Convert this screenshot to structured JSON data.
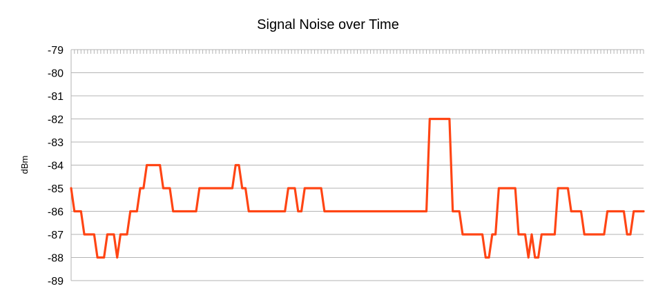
{
  "chart_data": {
    "type": "line",
    "title": "Signal Noise over Time",
    "xlabel": "",
    "ylabel": "dBm",
    "ylim": [
      -89,
      -79
    ],
    "yticks": [
      -79,
      -80,
      -81,
      -82,
      -83,
      -84,
      -85,
      -86,
      -87,
      -88,
      -89
    ],
    "grid": true,
    "legend": "none",
    "series": [
      {
        "values": [
          -85,
          -86,
          -86,
          -86,
          -87,
          -87,
          -87,
          -87,
          -88,
          -88,
          -88,
          -87,
          -87,
          -87,
          -88,
          -87,
          -87,
          -87,
          -86,
          -86,
          -86,
          -85,
          -85,
          -84,
          -84,
          -84,
          -84,
          -84,
          -85,
          -85,
          -85,
          -86,
          -86,
          -86,
          -86,
          -86,
          -86,
          -86,
          -86,
          -85,
          -85,
          -85,
          -85,
          -85,
          -85,
          -85,
          -85,
          -85,
          -85,
          -85,
          -84,
          -84,
          -85,
          -85,
          -86,
          -86,
          -86,
          -86,
          -86,
          -86,
          -86,
          -86,
          -86,
          -86,
          -86,
          -86,
          -85,
          -85,
          -85,
          -86,
          -86,
          -85,
          -85,
          -85,
          -85,
          -85,
          -85,
          -86,
          -86,
          -86,
          -86,
          -86,
          -86,
          -86,
          -86,
          -86,
          -86,
          -86,
          -86,
          -86,
          -86,
          -86,
          -86,
          -86,
          -86,
          -86,
          -86,
          -86,
          -86,
          -86,
          -86,
          -86,
          -86,
          -86,
          -86,
          -86,
          -86,
          -86,
          -86,
          -82,
          -82,
          -82,
          -82,
          -82,
          -82,
          -82,
          -86,
          -86,
          -86,
          -87,
          -87,
          -87,
          -87,
          -87,
          -87,
          -87,
          -88,
          -88,
          -87,
          -87,
          -85,
          -85,
          -85,
          -85,
          -85,
          -85,
          -87,
          -87,
          -87,
          -88,
          -87,
          -88,
          -88,
          -87,
          -87,
          -87,
          -87,
          -87,
          -85,
          -85,
          -85,
          -85,
          -86,
          -86,
          -86,
          -86,
          -87,
          -87,
          -87,
          -87,
          -87,
          -87,
          -87,
          -86,
          -86,
          -86,
          -86,
          -86,
          -86,
          -87,
          -87,
          -86,
          -86,
          -86,
          -86
        ]
      }
    ],
    "colors": {
      "line": "#ff4514",
      "grid": "#b3b3b3",
      "axis": "#b3b3b3",
      "text": "#000000"
    }
  }
}
